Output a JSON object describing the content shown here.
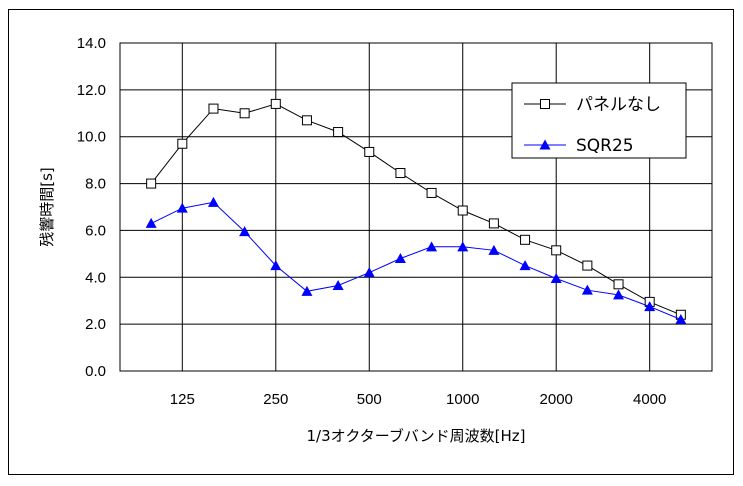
{
  "chart_data": {
    "type": "line",
    "xlabel": "1/3オクターブバンド周波数[Hz]",
    "ylabel": "残響時間[s]",
    "x_positions": [
      "100",
      "125",
      "160",
      "200",
      "250",
      "315",
      "400",
      "500",
      "630",
      "800",
      "1000",
      "1250",
      "1600",
      "2000",
      "2500",
      "3150",
      "4000",
      "5000"
    ],
    "x_tick_labels": [
      "125",
      "250",
      "500",
      "1000",
      "2000",
      "4000"
    ],
    "ylim": [
      0,
      14
    ],
    "y_ticks": [
      "0.0",
      "2.0",
      "4.0",
      "6.0",
      "8.0",
      "10.0",
      "12.0",
      "14.0"
    ],
    "grid": true,
    "legend_position": "top-right",
    "series": [
      {
        "name": "パネルなし",
        "marker": "open-square",
        "color": "#000000",
        "values": [
          8.0,
          9.7,
          11.2,
          11.0,
          11.4,
          10.7,
          10.2,
          9.35,
          8.45,
          7.6,
          6.85,
          6.3,
          5.6,
          5.15,
          4.5,
          3.7,
          2.95,
          2.4
        ]
      },
      {
        "name": "SQR25",
        "marker": "filled-triangle",
        "color": "#0000ff",
        "values": [
          6.3,
          6.95,
          7.2,
          5.95,
          4.5,
          3.4,
          3.65,
          4.2,
          4.8,
          5.3,
          5.3,
          5.15,
          4.5,
          3.95,
          3.45,
          3.25,
          2.75,
          2.2
        ]
      }
    ]
  }
}
